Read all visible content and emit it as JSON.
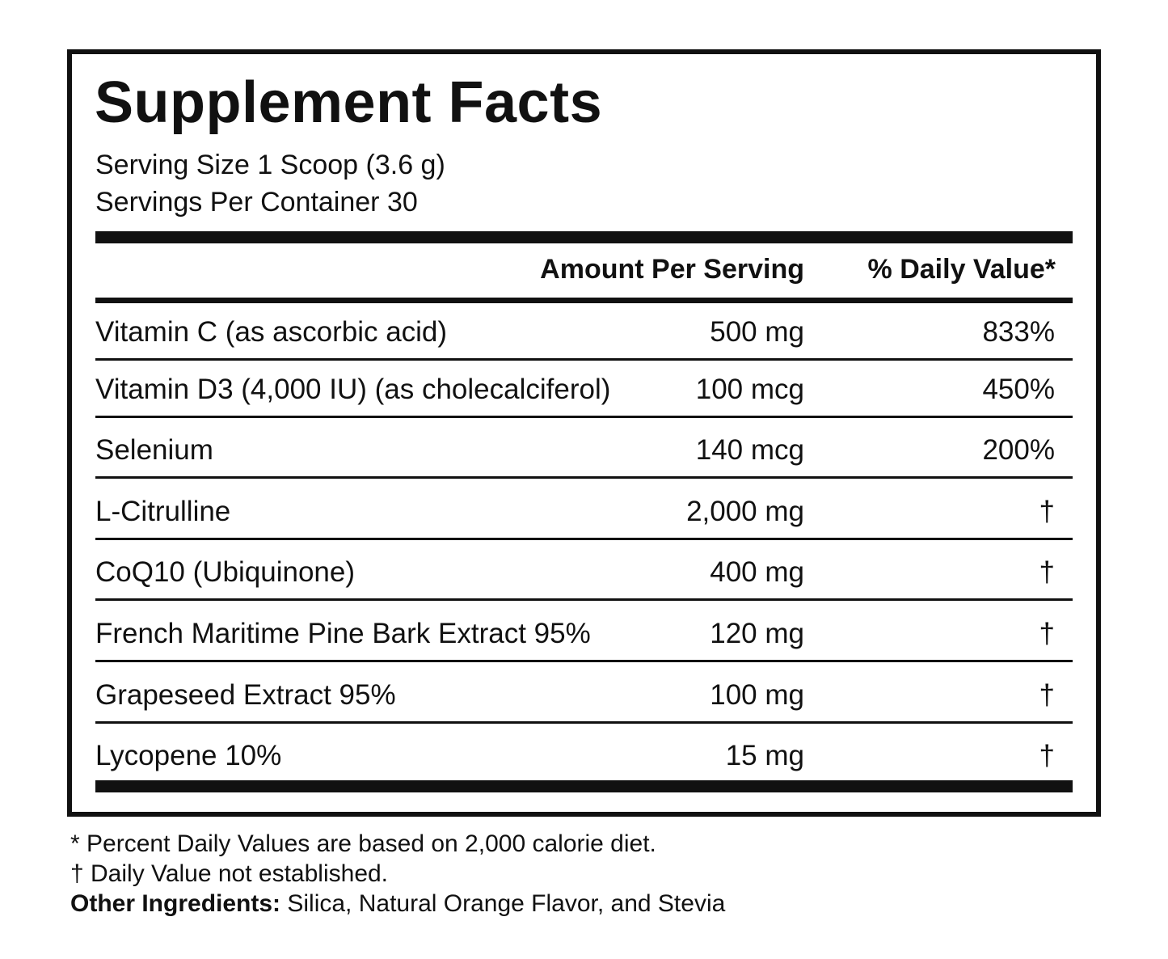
{
  "title": "Supplement Facts",
  "serving_size": "Serving Size 1 Scoop (3.6 g)",
  "servings_per_container": "Servings Per Container 30",
  "headers": {
    "amount": "Amount Per Serving",
    "daily_value": "% Daily Value*"
  },
  "rows": [
    {
      "name": "Vitamin C (as ascorbic acid)",
      "amount": "500 mg",
      "dv": "833%"
    },
    {
      "name": "Vitamin D3 (4,000 IU) (as cholecalciferol)",
      "amount": "100 mcg",
      "dv": "450%"
    },
    {
      "name": "Selenium",
      "amount": "140 mcg",
      "dv": "200%"
    },
    {
      "name": "L-Citrulline",
      "amount": "2,000 mg",
      "dv": "†"
    },
    {
      "name": "CoQ10 (Ubiquinone)",
      "amount": "400 mg",
      "dv": "†"
    },
    {
      "name": "French Maritime Pine Bark Extract 95%",
      "amount": "120 mg",
      "dv": "†"
    },
    {
      "name": "Grapeseed Extract 95%",
      "amount": "100 mg",
      "dv": "†"
    },
    {
      "name": "Lycopene 10%",
      "amount": "15 mg",
      "dv": "†"
    }
  ],
  "footnotes": {
    "percent": "* Percent Daily Values are based on 2,000 calorie diet.",
    "dagger": "† Daily Value not established.",
    "other_label": "Other Ingredients:",
    "other_value": " Silica, Natural Orange Flavor, and Stevia"
  }
}
